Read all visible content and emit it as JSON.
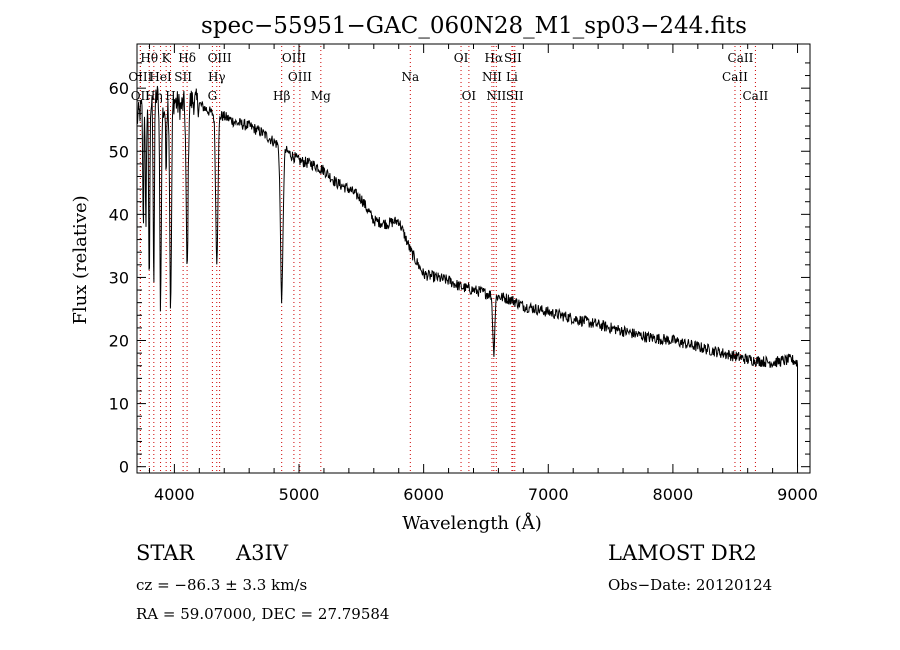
{
  "chart_data": {
    "type": "line",
    "title": "spec−55951−GAC_060N28_M1_sp03−244.fits",
    "xlabel": "Wavelength (Å)",
    "ylabel": "Flux (relative)",
    "xlim": [
      3700,
      9100
    ],
    "ylim": [
      -1,
      67
    ],
    "x_ticks": [
      4000,
      5000,
      6000,
      7000,
      8000,
      9000
    ],
    "y_ticks": [
      0,
      10,
      20,
      30,
      40,
      50,
      60
    ],
    "continuum": [
      [
        3700,
        55
      ],
      [
        3760,
        58
      ],
      [
        3800,
        57
      ],
      [
        3860,
        59
      ],
      [
        3900,
        56
      ],
      [
        3960,
        58
      ],
      [
        4000,
        58
      ],
      [
        4050,
        57
      ],
      [
        4100,
        58
      ],
      [
        4150,
        58
      ],
      [
        4200,
        57.5
      ],
      [
        4300,
        56
      ],
      [
        4400,
        55.5
      ],
      [
        4500,
        54.5
      ],
      [
        4600,
        54
      ],
      [
        4700,
        53
      ],
      [
        4800,
        51.5
      ],
      [
        4900,
        50
      ],
      [
        5000,
        48.5
      ],
      [
        5100,
        48
      ],
      [
        5200,
        47
      ],
      [
        5300,
        45
      ],
      [
        5400,
        44
      ],
      [
        5500,
        42.5
      ],
      [
        5600,
        39
      ],
      [
        5700,
        38.5
      ],
      [
        5800,
        39
      ],
      [
        5900,
        34
      ],
      [
        6000,
        30.5
      ],
      [
        6100,
        30
      ],
      [
        6200,
        29.5
      ],
      [
        6300,
        28.5
      ],
      [
        6400,
        28
      ],
      [
        6500,
        27.5
      ],
      [
        6600,
        27
      ],
      [
        6700,
        26.5
      ],
      [
        6800,
        25.5
      ],
      [
        6900,
        25
      ],
      [
        7000,
        24.5
      ],
      [
        7200,
        23.5
      ],
      [
        7400,
        22.5
      ],
      [
        7600,
        21.5
      ],
      [
        7800,
        20.5
      ],
      [
        8000,
        20
      ],
      [
        8200,
        19
      ],
      [
        8400,
        18
      ],
      [
        8600,
        17
      ],
      [
        8800,
        16.5
      ],
      [
        8950,
        17
      ],
      [
        9000,
        16.5
      ]
    ],
    "absorption": [
      {
        "center": 3750,
        "depth": 20,
        "width": 4
      },
      {
        "center": 3771,
        "depth": 22,
        "width": 4
      },
      {
        "center": 3798,
        "depth": 27,
        "width": 5
      },
      {
        "center": 3835,
        "depth": 29,
        "width": 5
      },
      {
        "center": 3889,
        "depth": 31,
        "width": 6
      },
      {
        "center": 3933,
        "depth": 10,
        "width": 4
      },
      {
        "center": 3970,
        "depth": 33,
        "width": 7
      },
      {
        "center": 4102,
        "depth": 27,
        "width": 8
      },
      {
        "center": 4340,
        "depth": 23,
        "width": 9
      },
      {
        "center": 4861,
        "depth": 24,
        "width": 10
      },
      {
        "center": 6563,
        "depth": 9,
        "width": 8
      }
    ],
    "line_markers": [
      {
        "label": "Hθ",
        "x": 3798,
        "row": 0
      },
      {
        "label": "K",
        "x": 3934,
        "row": 0
      },
      {
        "label": "Hδ",
        "x": 4102,
        "row": 0
      },
      {
        "label": "OIII",
        "x": 4363,
        "row": 0
      },
      {
        "label": "OIII",
        "x": 4959,
        "row": 0
      },
      {
        "label": "OI",
        "x": 6300,
        "row": 0
      },
      {
        "label": "Hα",
        "x": 6563,
        "row": 0
      },
      {
        "label": "SII",
        "x": 6716,
        "row": 0
      },
      {
        "label": "CaII",
        "x": 8542,
        "row": 0
      },
      {
        "label": "OIII",
        "x": 3727,
        "row": 1
      },
      {
        "label": "HeI",
        "x": 3889,
        "row": 1
      },
      {
        "label": "SII",
        "x": 4070,
        "row": 1
      },
      {
        "label": "Hγ",
        "x": 4340,
        "row": 1
      },
      {
        "label": "OIII",
        "x": 5007,
        "row": 1
      },
      {
        "label": "Na",
        "x": 5893,
        "row": 1
      },
      {
        "label": "NII",
        "x": 6548,
        "row": 1
      },
      {
        "label": "Li",
        "x": 6708,
        "row": 1
      },
      {
        "label": "CaII",
        "x": 8498,
        "row": 1
      },
      {
        "label": "OII",
        "x": 3727,
        "row": 2
      },
      {
        "label": "Hη",
        "x": 3835,
        "row": 2
      },
      {
        "label": "H",
        "x": 3969,
        "row": 2
      },
      {
        "label": "G",
        "x": 4305,
        "row": 2
      },
      {
        "label": "Hβ",
        "x": 4861,
        "row": 2
      },
      {
        "label": "Mg",
        "x": 5175,
        "row": 2
      },
      {
        "label": "OI",
        "x": 6363,
        "row": 2
      },
      {
        "label": "NII",
        "x": 6583,
        "row": 2
      },
      {
        "label": "SII",
        "x": 6731,
        "row": 2
      },
      {
        "label": "CaII",
        "x": 8662,
        "row": 2
      }
    ],
    "marker_color": "#cc0000"
  },
  "info": {
    "object_class": "STAR",
    "subclass": "A3IV",
    "survey": "LAMOST DR2",
    "redshift": "cz = −86.3 ± 3.3 km/s",
    "obs_date": "Obs−Date: 20120124",
    "coords": "RA = 59.07000, DEC = 27.79584"
  }
}
